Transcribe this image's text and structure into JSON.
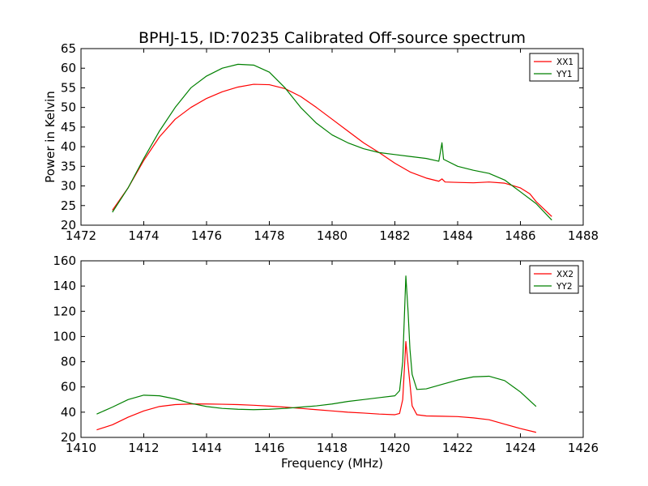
{
  "title": "BPHJ-15, ID:70235 Calibrated Off-source spectrum",
  "chart_data": [
    {
      "type": "line",
      "title": "BPHJ-15, ID:70235 Calibrated Off-source spectrum",
      "xlabel": "",
      "ylabel": "Power in Kelvin",
      "xlim": [
        1472,
        1488
      ],
      "ylim": [
        20,
        65
      ],
      "xticks": [
        "1472",
        "1474",
        "1476",
        "1478",
        "1480",
        "1482",
        "1484",
        "1486",
        "1488"
      ],
      "yticks": [
        "20",
        "25",
        "30",
        "35",
        "40",
        "45",
        "50",
        "55",
        "60",
        "65"
      ],
      "legend_position": "top-right",
      "grid": false,
      "series": [
        {
          "name": "XX1",
          "color": "#ff0000",
          "points": [
            [
              1473.0,
              23.8
            ],
            [
              1473.5,
              29.5
            ],
            [
              1474.0,
              36.5
            ],
            [
              1474.5,
              42.5
            ],
            [
              1475.0,
              47.0
            ],
            [
              1475.5,
              50.0
            ],
            [
              1476.0,
              52.3
            ],
            [
              1476.5,
              54.0
            ],
            [
              1477.0,
              55.2
            ],
            [
              1477.5,
              55.9
            ],
            [
              1478.0,
              55.8
            ],
            [
              1478.5,
              54.8
            ],
            [
              1479.0,
              52.8
            ],
            [
              1479.5,
              50.0
            ],
            [
              1480.0,
              47.0
            ],
            [
              1480.5,
              44.0
            ],
            [
              1481.0,
              41.0
            ],
            [
              1481.5,
              38.5
            ],
            [
              1482.0,
              35.8
            ],
            [
              1482.5,
              33.5
            ],
            [
              1483.0,
              32.0
            ],
            [
              1483.4,
              31.2
            ],
            [
              1483.5,
              31.8
            ],
            [
              1483.6,
              31.0
            ],
            [
              1484.0,
              30.9
            ],
            [
              1484.5,
              30.8
            ],
            [
              1485.0,
              31.0
            ],
            [
              1485.5,
              30.7
            ],
            [
              1486.0,
              29.5
            ],
            [
              1486.3,
              28.0
            ],
            [
              1486.35,
              27.5
            ],
            [
              1486.5,
              26.0
            ],
            [
              1487.0,
              22.2
            ]
          ]
        },
        {
          "name": "YY1",
          "color": "#008000",
          "points": [
            [
              1473.0,
              23.3
            ],
            [
              1473.5,
              29.5
            ],
            [
              1474.0,
              37.0
            ],
            [
              1474.5,
              44.0
            ],
            [
              1475.0,
              50.0
            ],
            [
              1475.5,
              55.0
            ],
            [
              1476.0,
              58.0
            ],
            [
              1476.5,
              60.0
            ],
            [
              1477.0,
              61.0
            ],
            [
              1477.5,
              60.8
            ],
            [
              1478.0,
              59.0
            ],
            [
              1478.5,
              55.0
            ],
            [
              1479.0,
              50.0
            ],
            [
              1479.5,
              46.0
            ],
            [
              1480.0,
              43.0
            ],
            [
              1480.5,
              41.0
            ],
            [
              1481.0,
              39.5
            ],
            [
              1481.5,
              38.5
            ],
            [
              1482.0,
              38.0
            ],
            [
              1482.5,
              37.5
            ],
            [
              1483.0,
              37.0
            ],
            [
              1483.4,
              36.3
            ],
            [
              1483.5,
              41.0
            ],
            [
              1483.55,
              36.8
            ],
            [
              1484.0,
              35.0
            ],
            [
              1484.5,
              34.0
            ],
            [
              1485.0,
              33.2
            ],
            [
              1485.5,
              31.5
            ],
            [
              1486.0,
              28.5
            ],
            [
              1486.5,
              25.5
            ],
            [
              1487.0,
              21.3
            ]
          ]
        }
      ]
    },
    {
      "type": "line",
      "title": "",
      "xlabel": "Frequency (MHz)",
      "ylabel": "",
      "xlim": [
        1410,
        1426
      ],
      "ylim": [
        20,
        160
      ],
      "xticks": [
        "1410",
        "1412",
        "1414",
        "1416",
        "1418",
        "1420",
        "1422",
        "1424",
        "1426"
      ],
      "yticks": [
        "20",
        "40",
        "60",
        "80",
        "100",
        "120",
        "140",
        "160"
      ],
      "legend_position": "top-right",
      "grid": false,
      "series": [
        {
          "name": "XX2",
          "color": "#ff0000",
          "points": [
            [
              1410.5,
              26.0
            ],
            [
              1411.0,
              30.0
            ],
            [
              1411.5,
              36.0
            ],
            [
              1412.0,
              41.0
            ],
            [
              1412.5,
              44.5
            ],
            [
              1413.0,
              46.0
            ],
            [
              1413.5,
              46.5
            ],
            [
              1414.0,
              46.5
            ],
            [
              1414.5,
              46.3
            ],
            [
              1415.0,
              46.0
            ],
            [
              1415.5,
              45.5
            ],
            [
              1416.0,
              44.8
            ],
            [
              1416.5,
              44.0
            ],
            [
              1417.0,
              43.0
            ],
            [
              1417.5,
              42.0
            ],
            [
              1418.0,
              41.0
            ],
            [
              1418.5,
              40.0
            ],
            [
              1419.0,
              39.3
            ],
            [
              1419.5,
              38.5
            ],
            [
              1420.0,
              38.0
            ],
            [
              1420.15,
              39.0
            ],
            [
              1420.25,
              50.0
            ],
            [
              1420.35,
              96.0
            ],
            [
              1420.45,
              70.0
            ],
            [
              1420.55,
              45.0
            ],
            [
              1420.7,
              38.0
            ],
            [
              1421.0,
              37.0
            ],
            [
              1421.5,
              36.8
            ],
            [
              1422.0,
              36.5
            ],
            [
              1422.5,
              35.5
            ],
            [
              1423.0,
              34.0
            ],
            [
              1423.5,
              30.5
            ],
            [
              1424.0,
              27.0
            ],
            [
              1424.5,
              24.0
            ]
          ]
        },
        {
          "name": "YY2",
          "color": "#008000",
          "points": [
            [
              1410.5,
              38.5
            ],
            [
              1411.0,
              44.0
            ],
            [
              1411.5,
              50.0
            ],
            [
              1412.0,
              53.5
            ],
            [
              1412.5,
              53.0
            ],
            [
              1413.0,
              50.5
            ],
            [
              1413.5,
              47.0
            ],
            [
              1414.0,
              44.5
            ],
            [
              1414.5,
              43.0
            ],
            [
              1415.0,
              42.3
            ],
            [
              1415.5,
              42.0
            ],
            [
              1416.0,
              42.3
            ],
            [
              1416.5,
              43.0
            ],
            [
              1417.0,
              44.0
            ],
            [
              1417.5,
              45.0
            ],
            [
              1418.0,
              46.5
            ],
            [
              1418.5,
              48.5
            ],
            [
              1419.0,
              50.0
            ],
            [
              1419.5,
              51.5
            ],
            [
              1420.0,
              53.0
            ],
            [
              1420.15,
              57.0
            ],
            [
              1420.25,
              80.0
            ],
            [
              1420.35,
              148.0
            ],
            [
              1420.42,
              120.0
            ],
            [
              1420.48,
              90.0
            ],
            [
              1420.55,
              70.0
            ],
            [
              1420.7,
              58.0
            ],
            [
              1421.0,
              58.5
            ],
            [
              1421.5,
              62.0
            ],
            [
              1422.0,
              65.5
            ],
            [
              1422.5,
              68.0
            ],
            [
              1423.0,
              68.5
            ],
            [
              1423.5,
              65.0
            ],
            [
              1424.0,
              56.0
            ],
            [
              1424.5,
              44.5
            ]
          ]
        }
      ]
    }
  ]
}
